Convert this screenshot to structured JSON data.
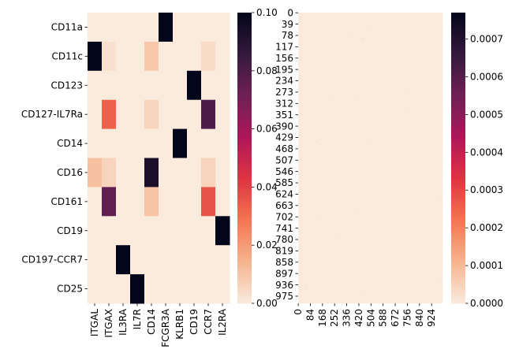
{
  "chart_data": [
    {
      "type": "heatmap",
      "title": "",
      "xlabel": "",
      "ylabel": "",
      "rows": [
        "CD11a",
        "CD11c",
        "CD123",
        "CD127-IL7Ra",
        "CD14",
        "CD16",
        "CD161",
        "CD19",
        "CD197-CCR7",
        "CD25"
      ],
      "columns": [
        "ITGAL",
        "ITGAX",
        "IL3RA",
        "IL7R",
        "CD14",
        "FCGR3A",
        "KLRB1",
        "CD19",
        "CCR7",
        "IL2RA"
      ],
      "values": [
        [
          0,
          0,
          0,
          0,
          0,
          0.1,
          0,
          0,
          0,
          0
        ],
        [
          0.1,
          0.003,
          0,
          0,
          0.009,
          0,
          0,
          0,
          0.004,
          0
        ],
        [
          0,
          0,
          0,
          0,
          0,
          0,
          0,
          0.1,
          0,
          0
        ],
        [
          0,
          0.033,
          0,
          0,
          0.006,
          0,
          0,
          0,
          0.08,
          0
        ],
        [
          0,
          0,
          0,
          0,
          0,
          0,
          0.1,
          0,
          0,
          0
        ],
        [
          0.011,
          0.006,
          0,
          0,
          0.093,
          0,
          0,
          0,
          0.006,
          0
        ],
        [
          0,
          0.075,
          0,
          0,
          0.01,
          0,
          0,
          0,
          0.036,
          0
        ],
        [
          0,
          0,
          0,
          0,
          0,
          0,
          0,
          0,
          0,
          0.1
        ],
        [
          0,
          0,
          0.1,
          0,
          0,
          0,
          0,
          0,
          0,
          0
        ],
        [
          0,
          0,
          0,
          0.1,
          0,
          0,
          0,
          0,
          0,
          0
        ]
      ],
      "colorbar": {
        "min": 0,
        "max": 0.1,
        "ticks": [
          0.0,
          0.02,
          0.04,
          0.06,
          0.08,
          0.1
        ],
        "tick_labels": [
          "0.00",
          "0.02",
          "0.04",
          "0.06",
          "0.08",
          "0.10"
        ]
      }
    },
    {
      "type": "heatmap",
      "title": "",
      "xlabel": "",
      "ylabel": "",
      "row_count": 1000,
      "column_count": 1000,
      "description_values": "near-zero everywhere (max ~0.00077)",
      "row_tick_labels": [
        "0",
        "39",
        "78",
        "117",
        "156",
        "195",
        "234",
        "273",
        "312",
        "351",
        "390",
        "429",
        "468",
        "507",
        "546",
        "585",
        "624",
        "663",
        "702",
        "741",
        "780",
        "819",
        "858",
        "897",
        "936",
        "975"
      ],
      "column_tick_labels": [
        "0",
        "84",
        "168",
        "252",
        "336",
        "420",
        "504",
        "588",
        "672",
        "756",
        "840",
        "924"
      ],
      "colorbar": {
        "min": 0,
        "max": 0.00077,
        "ticks": [
          0.0,
          0.0001,
          0.0002,
          0.0003,
          0.0004,
          0.0005,
          0.0006,
          0.0007
        ],
        "tick_labels": [
          "0.0000",
          "0.0001",
          "0.0002",
          "0.0003",
          "0.0004",
          "0.0005",
          "0.0006",
          "0.0007"
        ]
      }
    }
  ],
  "colormap": {
    "name": "rocket_r",
    "stops": [
      "#faebdd",
      "#f6b48f",
      "#f37651",
      "#e13342",
      "#ad1759",
      "#701f57",
      "#35193e",
      "#03051a"
    ]
  }
}
